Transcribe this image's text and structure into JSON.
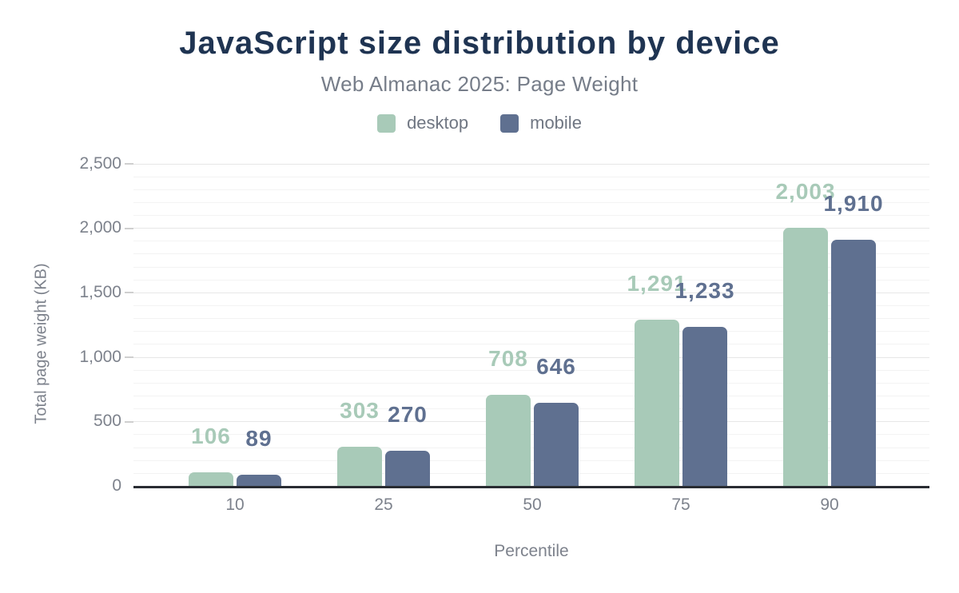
{
  "title": "JavaScript size distribution by device",
  "subtitle": "Web Almanac 2025: Page Weight",
  "chart_data": {
    "type": "bar",
    "title": "JavaScript size distribution by device",
    "subtitle": "Web Almanac 2025: Page Weight",
    "categories": [
      "10",
      "25",
      "50",
      "75",
      "90"
    ],
    "series": [
      {
        "name": "desktop",
        "color": "#a8cab8",
        "values": [
          106,
          303,
          708,
          1291,
          2003
        ],
        "labels": [
          "106",
          "303",
          "708",
          "1,291",
          "2,003"
        ]
      },
      {
        "name": "mobile",
        "color": "#5f7090",
        "values": [
          89,
          270,
          646,
          1233,
          1910
        ],
        "labels": [
          "89",
          "270",
          "646",
          "1,233",
          "1,910"
        ]
      }
    ],
    "xlabel": "Percentile",
    "ylabel": "Total page weight (KB)",
    "ylim": [
      0,
      2500
    ],
    "ytick_interval": 500,
    "yminor_interval": 100,
    "ytick_labels": [
      "0",
      "500",
      "1,000",
      "1,500",
      "2,000",
      "2,500"
    ],
    "grid": "on",
    "legend_position": "top"
  },
  "colors": {
    "title": "#1f3452",
    "subtitle_text": "#767d89",
    "tick_text": "#7d828c",
    "grid_major": "#e7e7e7",
    "grid_minor": "#f3f3f3",
    "axis_line": "#292c32"
  }
}
